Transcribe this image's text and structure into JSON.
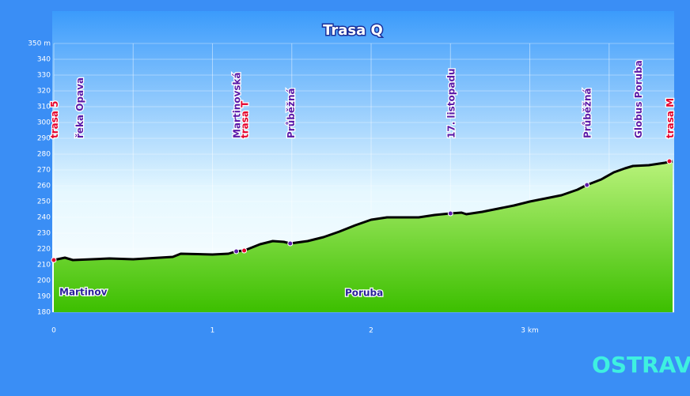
{
  "chart_data": {
    "type": "area",
    "title": "Trasa Q",
    "x": [
      0,
      0.07,
      0.12,
      0.35,
      0.5,
      0.75,
      0.8,
      1.0,
      1.1,
      1.15,
      1.2,
      1.3,
      1.38,
      1.45,
      1.49,
      1.6,
      1.7,
      1.8,
      1.9,
      2.0,
      2.1,
      2.3,
      2.4,
      2.5,
      2.57,
      2.6,
      2.7,
      2.8,
      2.9,
      3.0,
      3.1,
      3.2,
      3.3,
      3.36,
      3.45,
      3.53,
      3.6,
      3.65,
      3.75,
      3.85,
      3.9
    ],
    "values": [
      213,
      214.5,
      213,
      214,
      213.5,
      215,
      217,
      216.5,
      217,
      218.5,
      219,
      223,
      225,
      224.5,
      223.5,
      225,
      227.5,
      231,
      235,
      238.5,
      240,
      240,
      241.5,
      242.5,
      243,
      242,
      243.5,
      245.5,
      247.5,
      250,
      252,
      254,
      257.5,
      260.5,
      264,
      268.5,
      271,
      272.5,
      273,
      274.5,
      275.5
    ],
    "color": "#000000",
    "xlim": [
      0,
      3.91
    ],
    "ylim": [
      180,
      350
    ],
    "xticks": [
      0,
      1,
      2,
      {
        "value": 3,
        "label": "3 km"
      }
    ],
    "yticks": [
      180,
      190,
      200,
      210,
      220,
      230,
      240,
      250,
      260,
      270,
      280,
      290,
      300,
      310,
      320,
      330,
      340,
      {
        "value": 350,
        "label": "350 m"
      }
    ],
    "grid": true,
    "stops": [
      {
        "name": "trasa 5",
        "x": 0.0,
        "value": 213,
        "color": "#e4002b"
      },
      {
        "name": "řeka Opava",
        "x": 0.16,
        "value": null,
        "color": "#5b1aa8"
      },
      {
        "name": "Martinovská",
        "x": 1.15,
        "value": 218.5,
        "color": "#5b1aa8"
      },
      {
        "name": "trasa T",
        "x": 1.2,
        "value": 219,
        "color": "#e4002b"
      },
      {
        "name": "Průběžná",
        "x": 1.49,
        "value": 223.5,
        "color": "#5b1aa8"
      },
      {
        "name": "17. listopadu",
        "x": 2.5,
        "value": 242.5,
        "color": "#5b1aa8"
      },
      {
        "name": "Průběžná",
        "x": 3.36,
        "value": 260.5,
        "color": "#5b1aa8"
      },
      {
        "name": "Globus Poruba",
        "x": 3.68,
        "value": null,
        "color": "#5b1aa8"
      },
      {
        "name": "trasa M",
        "x": 3.88,
        "value": 275.5,
        "color": "#e4002b"
      }
    ],
    "annotations": [
      "Martinov",
      "Poruba"
    ]
  },
  "logo": {
    "text": "OSTRAVA",
    "marks": "!!!"
  }
}
